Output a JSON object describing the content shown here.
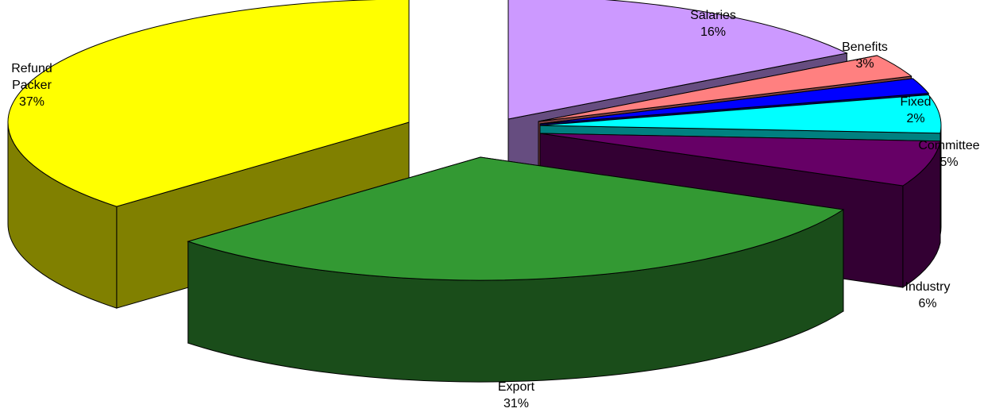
{
  "chart_data": {
    "type": "pie",
    "style": "3d-exploded",
    "slices": [
      {
        "name": "Salaries",
        "value": 16,
        "label": "16%",
        "color": "#CC99FF",
        "side": "#664D80"
      },
      {
        "name": "Benefits",
        "value": 3,
        "label": "3%",
        "color": "#FF8080",
        "side": "#804040"
      },
      {
        "name": "Fixed",
        "value": 2,
        "label": "2%",
        "color": "#0000FF",
        "side": "#000080"
      },
      {
        "name": "Committee",
        "value": 5,
        "label": "5%",
        "color": "#00FFFF",
        "side": "#008080"
      },
      {
        "name": "Industry",
        "value": 6,
        "label": "6%",
        "color": "#660066",
        "side": "#330033"
      },
      {
        "name": "Export",
        "value": 31,
        "label": "31%",
        "color": "#339933",
        "side": "#1A4D1A"
      },
      {
        "name": "Refund Packer",
        "value": 37,
        "label": "37%",
        "color": "#FFFF00",
        "side": "#808000"
      }
    ],
    "legend": "none"
  }
}
